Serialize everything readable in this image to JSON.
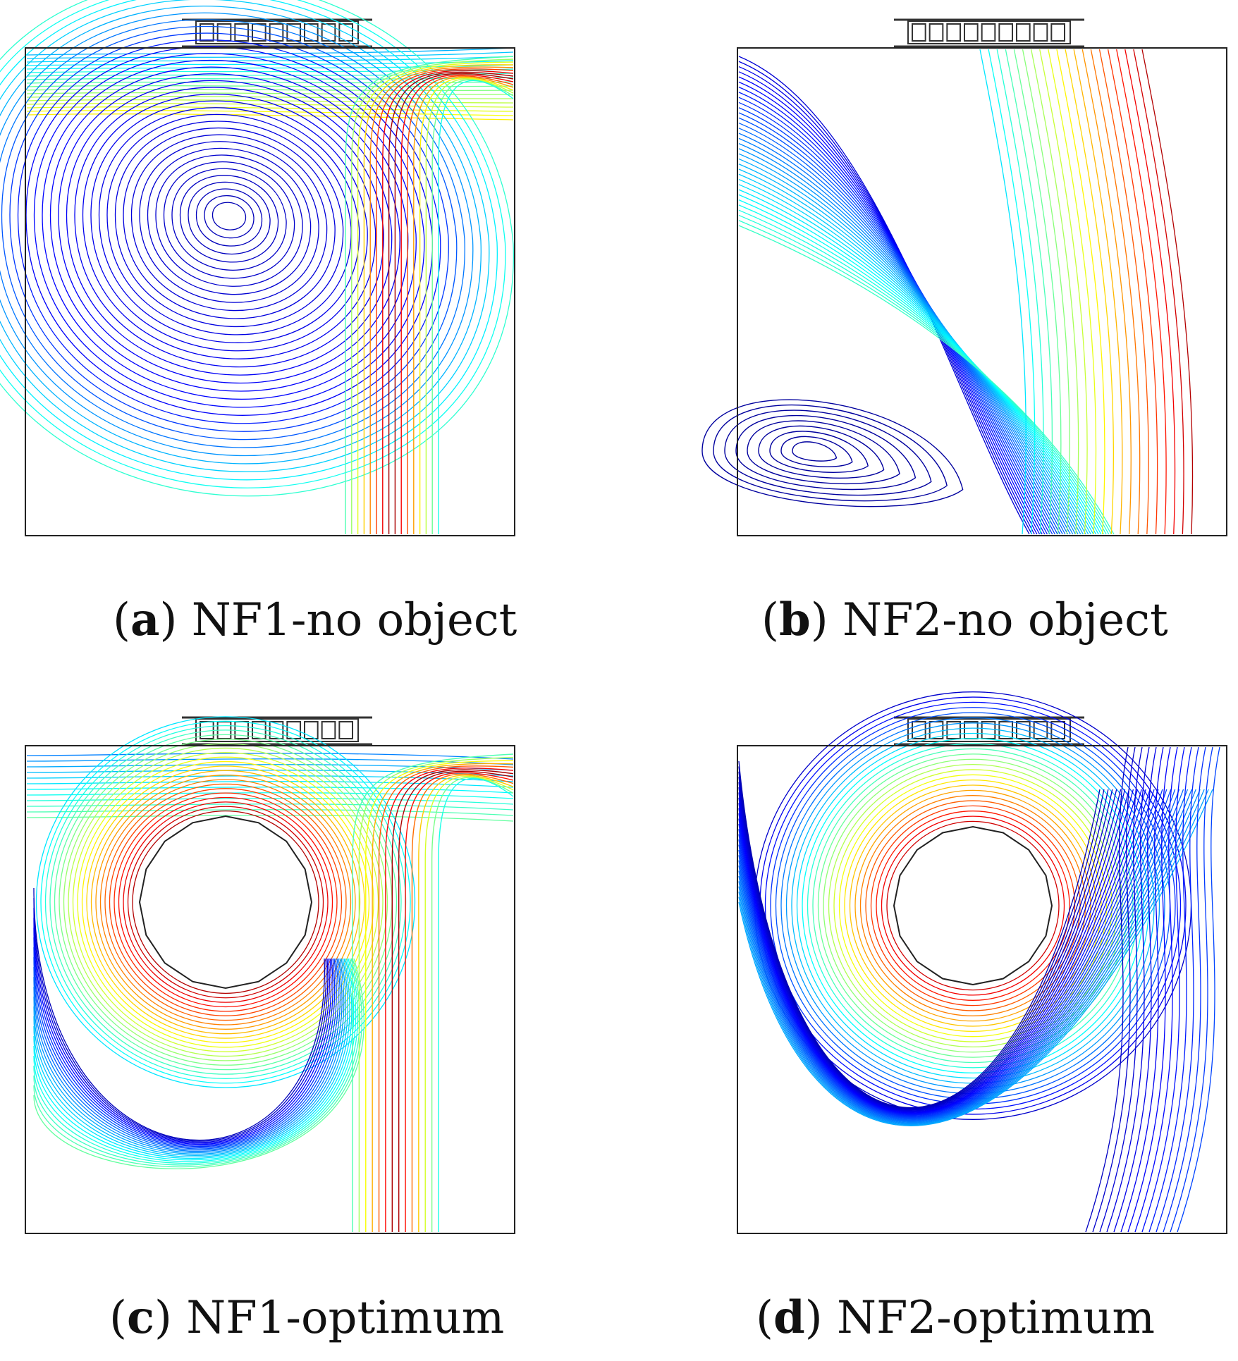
{
  "panels": [
    {
      "id": "a",
      "letter": "a",
      "label": "NF1-no object",
      "has_obstacle": false
    },
    {
      "id": "b",
      "letter": "b",
      "label": "NF2-no object",
      "has_obstacle": false
    },
    {
      "id": "c",
      "letter": "c",
      "label": "NF1-optimum",
      "has_obstacle": true
    },
    {
      "id": "d",
      "letter": "d",
      "label": "NF2-optimum",
      "has_obstacle": true
    }
  ],
  "colormap": [
    "#00008b",
    "#0000ff",
    "#0080ff",
    "#00ffff",
    "#80ff80",
    "#ffff00",
    "#ff8000",
    "#ff0000",
    "#800000"
  ],
  "heat_source_cells": 9
}
